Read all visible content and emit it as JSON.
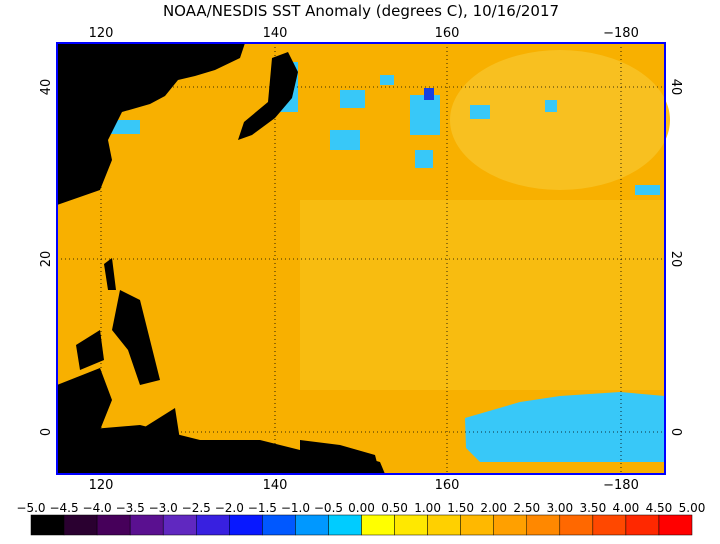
{
  "title": "NOAA/NESDIS SST Anomaly (degrees C), 10/16/2017",
  "lon_labels": [
    "120",
    "140",
    "160",
    "−180"
  ],
  "lat_labels": [
    "40",
    "20",
    "0"
  ],
  "colorbar": {
    "labels": [
      "−5.0",
      "−4.5",
      "−4.0",
      "−3.5",
      "−3.0",
      "−2.5",
      "−2.0",
      "−1.5",
      "−1.0",
      "−0.5",
      "0.00",
      "0.50",
      "1.00",
      "1.50",
      "2.00",
      "2.50",
      "3.00",
      "3.50",
      "4.00",
      "4.50",
      "5.00"
    ],
    "colors": [
      "#000000",
      "#2a0030",
      "#46005a",
      "#5a1090",
      "#6028c0",
      "#3820e0",
      "#0818ff",
      "#0058ff",
      "#0098ff",
      "#00ccff",
      "#ffff00",
      "#ffe800",
      "#ffd000",
      "#ffb800",
      "#ffa000",
      "#ff8800",
      "#ff6800",
      "#ff4800",
      "#ff2800",
      "#ff0000"
    ]
  }
}
